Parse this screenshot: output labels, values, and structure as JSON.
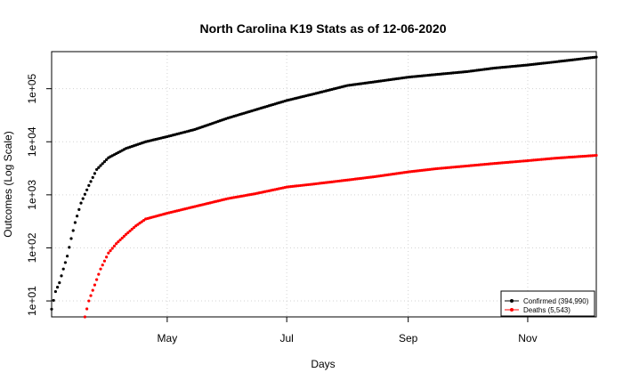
{
  "chart_data": {
    "type": "scatter",
    "title": "North Carolina K19 Stats as of 12-06-2020",
    "xlabel": "Days",
    "ylabel": "Outcomes (Log Scale)",
    "x_scale": "date",
    "y_scale": "log10",
    "xlim": [
      "2020-03-03",
      "2020-12-06"
    ],
    "ylim": [
      5,
      500000
    ],
    "x_ticks": [
      {
        "date": "2020-05-01",
        "label": "May"
      },
      {
        "date": "2020-07-01",
        "label": "Jul"
      },
      {
        "date": "2020-09-01",
        "label": "Sep"
      },
      {
        "date": "2020-11-01",
        "label": "Nov"
      }
    ],
    "y_ticks": [
      {
        "value": 10,
        "label": "1e+01"
      },
      {
        "value": 100,
        "label": "1e+02"
      },
      {
        "value": 1000,
        "label": "1e+03"
      },
      {
        "value": 10000,
        "label": "1e+04"
      },
      {
        "value": 100000,
        "label": "1e+05"
      }
    ],
    "grid": true,
    "legend_position": "bottom-right",
    "series": [
      {
        "name": "Confirmed (394,990)",
        "color": "#000000",
        "points": [
          [
            "2020-03-03",
            7
          ],
          [
            "2020-03-05",
            15
          ],
          [
            "2020-03-07",
            22
          ],
          [
            "2020-03-09",
            40
          ],
          [
            "2020-03-11",
            70
          ],
          [
            "2020-03-13",
            150
          ],
          [
            "2020-03-15",
            300
          ],
          [
            "2020-03-18",
            700
          ],
          [
            "2020-03-22",
            1500
          ],
          [
            "2020-03-26",
            3000
          ],
          [
            "2020-04-01",
            5000
          ],
          [
            "2020-04-10",
            7500
          ],
          [
            "2020-04-20",
            10000
          ],
          [
            "2020-05-01",
            12500
          ],
          [
            "2020-05-15",
            17000
          ],
          [
            "2020-06-01",
            28000
          ],
          [
            "2020-06-15",
            40000
          ],
          [
            "2020-07-01",
            60000
          ],
          [
            "2020-07-15",
            80000
          ],
          [
            "2020-08-01",
            115000
          ],
          [
            "2020-08-15",
            135000
          ],
          [
            "2020-09-01",
            165000
          ],
          [
            "2020-09-15",
            185000
          ],
          [
            "2020-10-01",
            210000
          ],
          [
            "2020-10-15",
            245000
          ],
          [
            "2020-11-01",
            280000
          ],
          [
            "2020-11-15",
            320000
          ],
          [
            "2020-12-06",
            394990
          ]
        ]
      },
      {
        "name": "Deaths (5,543)",
        "color": "#ff0000",
        "points": [
          [
            "2020-03-20",
            5
          ],
          [
            "2020-03-22",
            10
          ],
          [
            "2020-03-25",
            20
          ],
          [
            "2020-03-28",
            40
          ],
          [
            "2020-04-01",
            80
          ],
          [
            "2020-04-05",
            120
          ],
          [
            "2020-04-10",
            180
          ],
          [
            "2020-04-15",
            260
          ],
          [
            "2020-04-20",
            350
          ],
          [
            "2020-05-01",
            450
          ],
          [
            "2020-05-15",
            600
          ],
          [
            "2020-06-01",
            850
          ],
          [
            "2020-06-15",
            1050
          ],
          [
            "2020-07-01",
            1400
          ],
          [
            "2020-07-15",
            1600
          ],
          [
            "2020-08-01",
            1900
          ],
          [
            "2020-08-15",
            2200
          ],
          [
            "2020-09-01",
            2700
          ],
          [
            "2020-09-15",
            3100
          ],
          [
            "2020-10-01",
            3500
          ],
          [
            "2020-10-15",
            3900
          ],
          [
            "2020-11-01",
            4400
          ],
          [
            "2020-11-15",
            4900
          ],
          [
            "2020-12-06",
            5543
          ]
        ]
      }
    ]
  }
}
